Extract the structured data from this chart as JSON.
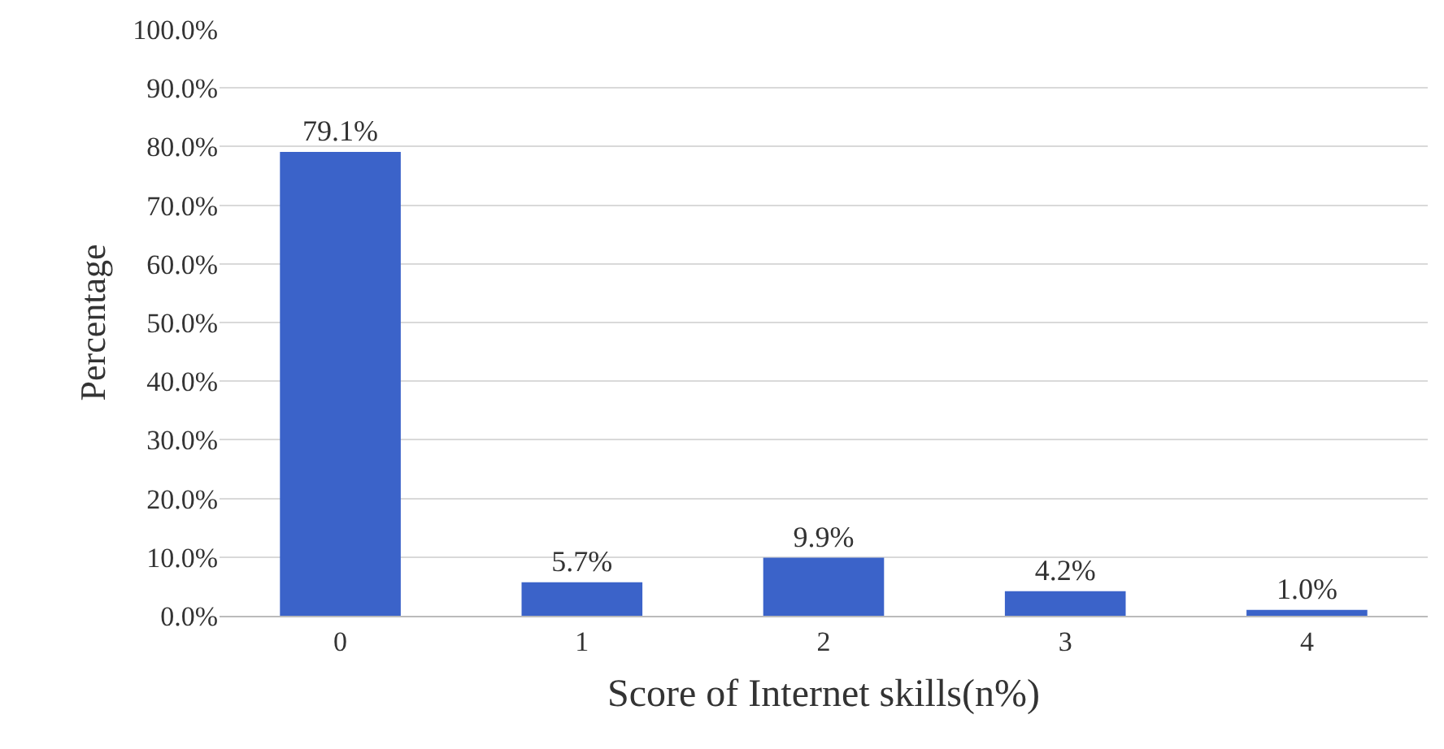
{
  "chart_data": {
    "type": "bar",
    "xlabel": "Score of Internet skills(n%)",
    "ylabel": "Percentage",
    "categories": [
      "0",
      "1",
      "2",
      "3",
      "4"
    ],
    "values": [
      79.1,
      5.7,
      9.9,
      4.2,
      1.0
    ],
    "value_labels": [
      "79.1%",
      "5.7%",
      "9.9%",
      "4.2%",
      "1.0%"
    ],
    "color": "#3b63c9",
    "ylim": [
      0,
      100
    ],
    "yticks": [
      {
        "value": 0,
        "label": "0.0%"
      },
      {
        "value": 10,
        "label": "10.0%"
      },
      {
        "value": 20,
        "label": "20.0%"
      },
      {
        "value": 30,
        "label": "30.0%"
      },
      {
        "value": 40,
        "label": "40.0%"
      },
      {
        "value": 50,
        "label": "50.0%"
      },
      {
        "value": 60,
        "label": "60.0%"
      },
      {
        "value": 70,
        "label": "70.0%"
      },
      {
        "value": 80,
        "label": "80.0%"
      },
      {
        "value": 90,
        "label": "90.0%"
      },
      {
        "value": 100,
        "label": "100.0%"
      }
    ],
    "grid": "y",
    "legend": false
  }
}
